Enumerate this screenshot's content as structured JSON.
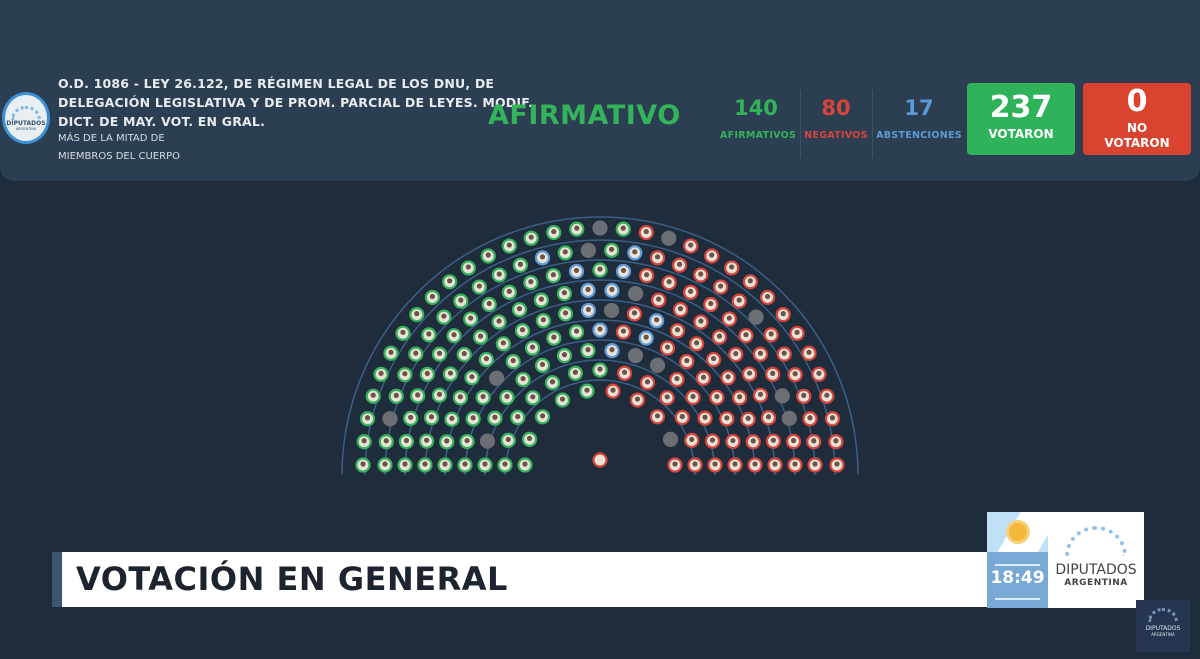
{
  "header": {
    "logo_text": "DIPUTADOS ARGENTINA",
    "title_lines": [
      "O.D. 1086 - LEY 26.122, DE RÉGIMEN LEGAL DE LOS DNU, DE",
      "DELEGACIÓN LEGISLATIVA Y DE PROM. PARCIAL DE LEYES. MODIF.",
      "DICT. DE MAY. VOT. EN GRAL."
    ],
    "majority_lines": [
      "MÁS DE LA MITAD DE",
      "MIEMBROS DEL CUERPO"
    ],
    "result": "AFIRMATIVO",
    "afirmativos": {
      "value": "140",
      "label": "AFIRMATIVOS"
    },
    "negativos": {
      "value": "80",
      "label": "NEGATIVOS"
    },
    "abstenciones": {
      "value": "17",
      "label": "ABSTENCIONES"
    },
    "votaron": {
      "value": "237",
      "label": "VOTARON"
    },
    "no_votaron": {
      "value": "0",
      "label_lines": [
        "NO",
        "VOTARON"
      ]
    }
  },
  "colors": {
    "afirmativo": "#34b45a",
    "negativo": "#d9443a",
    "abstencion": "#5b9bd8",
    "ausente": "#6b6e72",
    "votaron_box": "#2eb35a",
    "no_votaron_box": "#d9432f"
  },
  "hemicycle": {
    "afirmativos": 140,
    "negativos": 80,
    "abstenciones": 17
  },
  "lower_third": {
    "title": "VOTACIÓN EN GENERAL",
    "time": "18:49",
    "brand": "DIPUTADOS",
    "brand_sub": "ARGENTINA"
  }
}
